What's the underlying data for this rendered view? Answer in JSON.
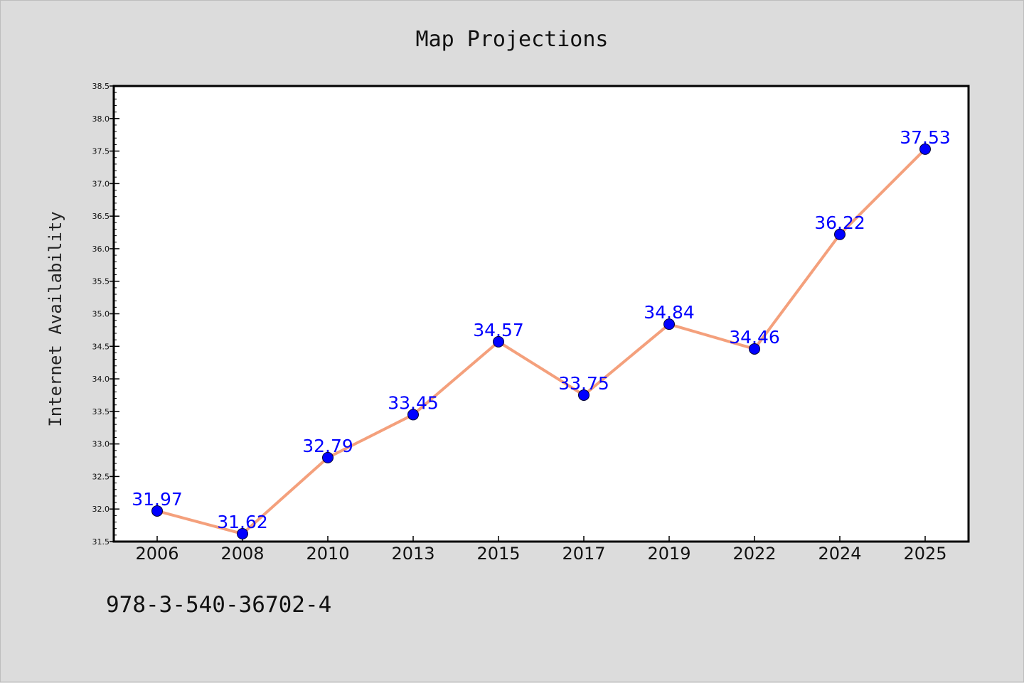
{
  "chart_data": {
    "type": "line",
    "title": "Map Projections",
    "xlabel": "",
    "ylabel": "Internet Availability",
    "categories": [
      "2006",
      "2008",
      "2010",
      "2013",
      "2015",
      "2017",
      "2019",
      "2022",
      "2024",
      "2025"
    ],
    "series": [
      {
        "values": [
          31.97,
          31.62,
          32.79,
          33.45,
          34.57,
          33.75,
          34.84,
          34.46,
          36.22,
          37.53
        ],
        "labels": [
          "31.97",
          "31.62",
          "32.79",
          "33.45",
          "34.57",
          "33.75",
          "34.84",
          "34.46",
          "36.22",
          "37.53"
        ],
        "line_color": "#f4a07c",
        "marker_color": "#0000ff"
      }
    ],
    "ylim": [
      31.5,
      38.5
    ],
    "yticks": [
      "31.5",
      "32.0",
      "32.5",
      "33.0",
      "33.5",
      "34.0",
      "34.5",
      "35.0",
      "35.5",
      "36.0",
      "36.5",
      "37.0",
      "37.5",
      "38.0",
      "38.5"
    ],
    "grid": false,
    "legend": "none"
  },
  "footnote": "978-3-540-36702-4"
}
